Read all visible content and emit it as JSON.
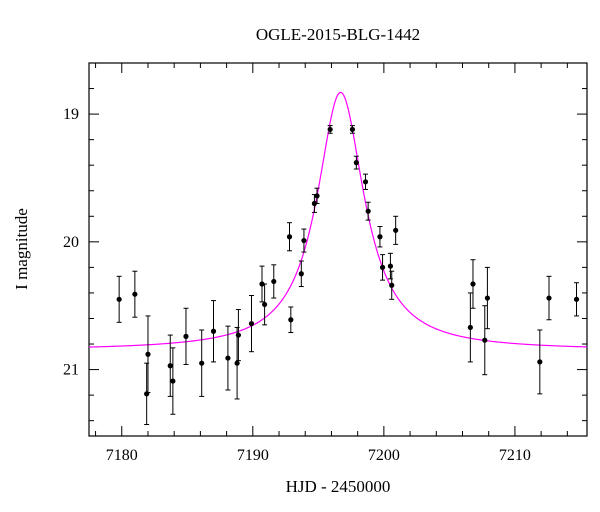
{
  "chart_data": {
    "type": "scatter",
    "title": "OGLE-2015-BLG-1442",
    "xlabel": "HJD - 2450000",
    "ylabel": "I magnitude",
    "xlim": [
      7177.5,
      7215.5
    ],
    "ylim": [
      21.52,
      18.6
    ],
    "y_inverted": true,
    "x_ticks": [
      7180,
      7190,
      7200,
      7210
    ],
    "x_tick_labels": [
      "7180",
      "7190",
      "7200",
      "7210"
    ],
    "y_ticks": [
      19,
      20,
      21
    ],
    "y_tick_labels": [
      "19",
      "20",
      "21"
    ],
    "grid": false,
    "legend": "none",
    "model_color": "#ff00ff",
    "point_color": "#000000",
    "series": [
      {
        "kind": "points_with_errorbars",
        "points": [
          {
            "x": 7179.8,
            "y": 20.45,
            "err": 0.18
          },
          {
            "x": 7181.0,
            "y": 20.41,
            "err": 0.18
          },
          {
            "x": 7181.9,
            "y": 21.19,
            "err": 0.24
          },
          {
            "x": 7182.0,
            "y": 20.88,
            "err": 0.3
          },
          {
            "x": 7183.7,
            "y": 20.97,
            "err": 0.24
          },
          {
            "x": 7183.9,
            "y": 21.09,
            "err": 0.26
          },
          {
            "x": 7184.9,
            "y": 20.74,
            "err": 0.22
          },
          {
            "x": 7186.1,
            "y": 20.95,
            "err": 0.26
          },
          {
            "x": 7187.0,
            "y": 20.7,
            "err": 0.24
          },
          {
            "x": 7188.1,
            "y": 20.91,
            "err": 0.25
          },
          {
            "x": 7188.8,
            "y": 20.95,
            "err": 0.28
          },
          {
            "x": 7188.9,
            "y": 20.73,
            "err": 0.2
          },
          {
            "x": 7189.9,
            "y": 20.64,
            "err": 0.22
          },
          {
            "x": 7190.7,
            "y": 20.33,
            "err": 0.14
          },
          {
            "x": 7190.9,
            "y": 20.49,
            "err": 0.16
          },
          {
            "x": 7191.6,
            "y": 20.31,
            "err": 0.13
          },
          {
            "x": 7192.8,
            "y": 19.96,
            "err": 0.11
          },
          {
            "x": 7192.9,
            "y": 20.61,
            "err": 0.1
          },
          {
            "x": 7193.7,
            "y": 20.25,
            "err": 0.1
          },
          {
            "x": 7193.9,
            "y": 19.99,
            "err": 0.09
          },
          {
            "x": 7194.7,
            "y": 19.7,
            "err": 0.07
          },
          {
            "x": 7194.9,
            "y": 19.64,
            "err": 0.06
          },
          {
            "x": 7195.9,
            "y": 19.12,
            "err": 0.03
          },
          {
            "x": 7197.6,
            "y": 19.12,
            "err": 0.03
          },
          {
            "x": 7197.9,
            "y": 19.38,
            "err": 0.05
          },
          {
            "x": 7198.6,
            "y": 19.53,
            "err": 0.06
          },
          {
            "x": 7198.8,
            "y": 19.76,
            "err": 0.07
          },
          {
            "x": 7199.7,
            "y": 19.96,
            "err": 0.08
          },
          {
            "x": 7199.9,
            "y": 20.2,
            "err": 0.1
          },
          {
            "x": 7200.5,
            "y": 20.19,
            "err": 0.1
          },
          {
            "x": 7200.6,
            "y": 20.34,
            "err": 0.11
          },
          {
            "x": 7200.9,
            "y": 19.91,
            "err": 0.11
          },
          {
            "x": 7206.6,
            "y": 20.67,
            "err": 0.27
          },
          {
            "x": 7206.8,
            "y": 20.33,
            "err": 0.19
          },
          {
            "x": 7207.7,
            "y": 20.77,
            "err": 0.27
          },
          {
            "x": 7207.9,
            "y": 20.44,
            "err": 0.24
          },
          {
            "x": 7211.9,
            "y": 20.94,
            "err": 0.25
          },
          {
            "x": 7212.6,
            "y": 20.44,
            "err": 0.17
          },
          {
            "x": 7214.7,
            "y": 20.45,
            "err": 0.13
          }
        ]
      },
      {
        "kind": "model_curve",
        "t0": 7196.7,
        "base_mag": 20.85,
        "peak_mag": 18.83,
        "width_days": 2.2
      }
    ]
  }
}
